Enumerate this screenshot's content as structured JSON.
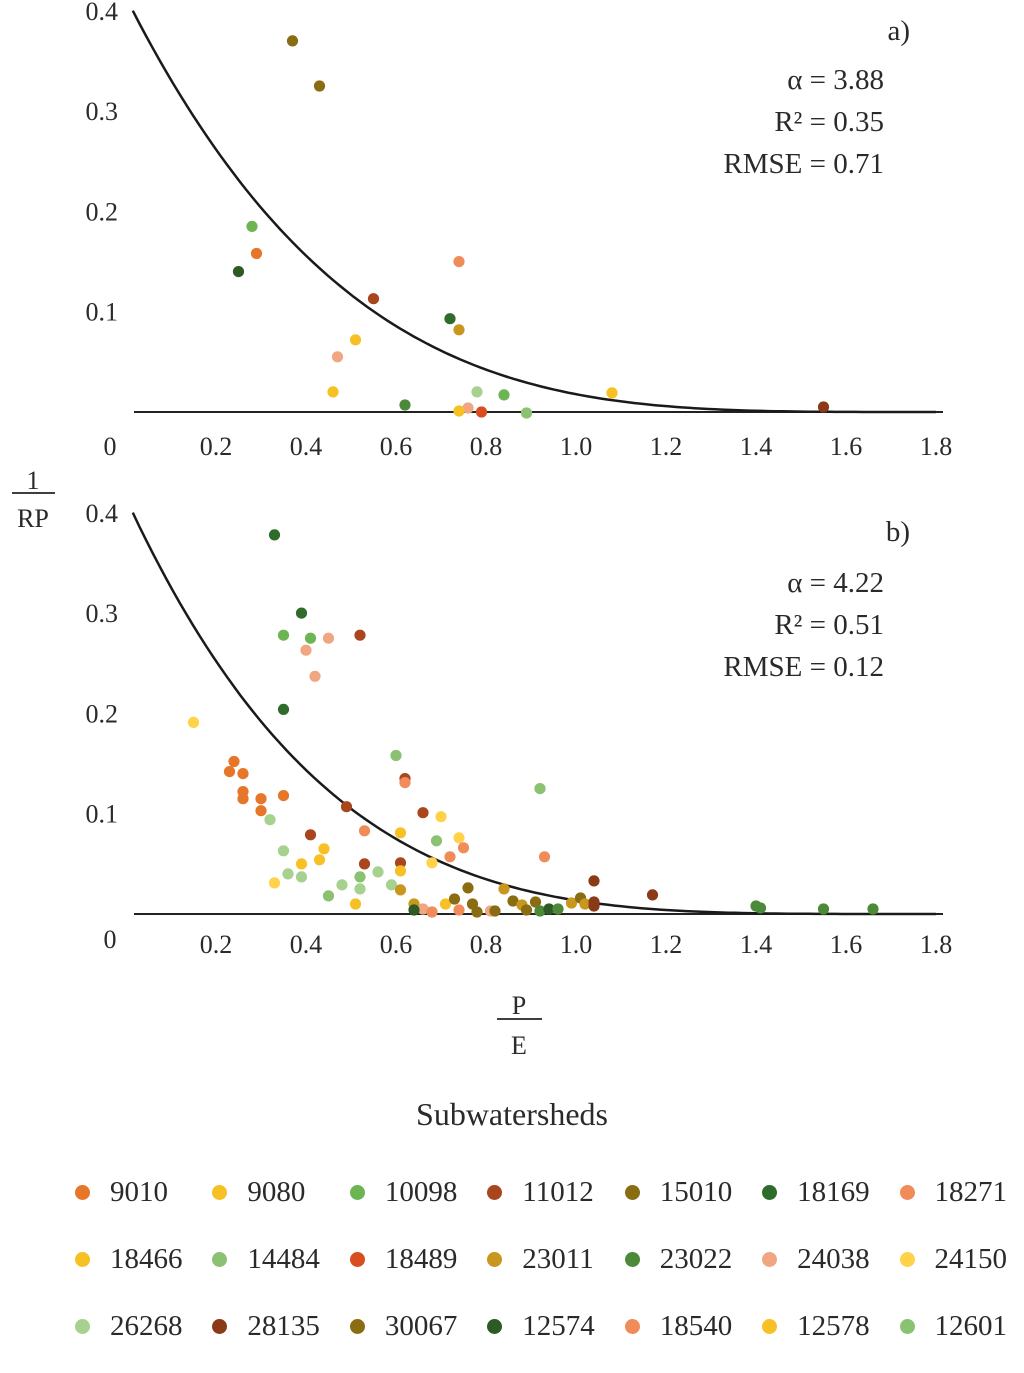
{
  "chart_data": [
    {
      "type": "scatter",
      "panel_label": "a)",
      "stats": {
        "alpha": "α = 3.88",
        "r2": "R² = 0.35",
        "rmse": "RMSE = 0.71"
      },
      "alpha": 3.88,
      "xlim": [
        0,
        1.8
      ],
      "ylim": [
        0,
        0.4
      ],
      "x_ticks": [
        "0.2",
        "0.4",
        "0.6",
        "0.8",
        "1.0",
        "1.2",
        "1.4",
        "1.6",
        "1.8"
      ],
      "x_origin": "0",
      "y_ticks": [
        "0.1",
        "0.2",
        "0.3",
        "0.4"
      ],
      "points": [
        {
          "x": 0.37,
          "y": 0.37,
          "color": "#8a6d12"
        },
        {
          "x": 0.43,
          "y": 0.325,
          "color": "#8a6d12"
        },
        {
          "x": 0.28,
          "y": 0.185,
          "color": "#6db553"
        },
        {
          "x": 0.29,
          "y": 0.158,
          "color": "#e5762a"
        },
        {
          "x": 0.25,
          "y": 0.14,
          "color": "#2e5a26"
        },
        {
          "x": 0.74,
          "y": 0.15,
          "color": "#ef8c5a"
        },
        {
          "x": 0.55,
          "y": 0.113,
          "color": "#a9461d"
        },
        {
          "x": 0.72,
          "y": 0.093,
          "color": "#2f6b2a"
        },
        {
          "x": 0.74,
          "y": 0.082,
          "color": "#c9961e"
        },
        {
          "x": 0.51,
          "y": 0.072,
          "color": "#f7c126"
        },
        {
          "x": 0.47,
          "y": 0.055,
          "color": "#f0a681"
        },
        {
          "x": 0.46,
          "y": 0.02,
          "color": "#f7c126"
        },
        {
          "x": 0.62,
          "y": 0.007,
          "color": "#4c8a3a"
        },
        {
          "x": 0.78,
          "y": 0.02,
          "color": "#a6d18f"
        },
        {
          "x": 0.84,
          "y": 0.017,
          "color": "#6db553"
        },
        {
          "x": 0.76,
          "y": 0.004,
          "color": "#f0a681"
        },
        {
          "x": 0.74,
          "y": 0.001,
          "color": "#f7c126"
        },
        {
          "x": 0.79,
          "y": 0.0,
          "color": "#d84e1f"
        },
        {
          "x": 0.89,
          "y": -0.001,
          "color": "#8ac271"
        },
        {
          "x": 1.08,
          "y": 0.019,
          "color": "#f7c126"
        },
        {
          "x": 1.55,
          "y": 0.005,
          "color": "#8a3a16"
        }
      ]
    },
    {
      "type": "scatter",
      "panel_label": "b)",
      "stats": {
        "alpha": "α = 4.22",
        "r2": "R² = 0.51",
        "rmse": "RMSE = 0.12"
      },
      "alpha": 4.22,
      "xlim": [
        0,
        1.8
      ],
      "ylim": [
        0,
        0.4
      ],
      "x_ticks": [
        "0.2",
        "0.4",
        "0.6",
        "0.8",
        "1.0",
        "1.2",
        "1.4",
        "1.6",
        "1.8"
      ],
      "x_origin": "0",
      "y_ticks": [
        "0.1",
        "0.2",
        "0.3",
        "0.4"
      ],
      "points": [
        {
          "x": 0.33,
          "y": 0.378,
          "color": "#2f6b2a"
        },
        {
          "x": 0.39,
          "y": 0.3,
          "color": "#2f6b2a"
        },
        {
          "x": 0.35,
          "y": 0.278,
          "color": "#6db553"
        },
        {
          "x": 0.41,
          "y": 0.275,
          "color": "#6db553"
        },
        {
          "x": 0.45,
          "y": 0.275,
          "color": "#f0a681"
        },
        {
          "x": 0.52,
          "y": 0.278,
          "color": "#a9461d"
        },
        {
          "x": 0.4,
          "y": 0.263,
          "color": "#f0a681"
        },
        {
          "x": 0.42,
          "y": 0.237,
          "color": "#f0a681"
        },
        {
          "x": 0.35,
          "y": 0.204,
          "color": "#2f6b2a"
        },
        {
          "x": 0.15,
          "y": 0.191,
          "color": "#ffd24a"
        },
        {
          "x": 0.24,
          "y": 0.152,
          "color": "#e5762a"
        },
        {
          "x": 0.23,
          "y": 0.142,
          "color": "#e5762a"
        },
        {
          "x": 0.26,
          "y": 0.14,
          "color": "#e5762a"
        },
        {
          "x": 0.26,
          "y": 0.122,
          "color": "#e5762a"
        },
        {
          "x": 0.26,
          "y": 0.115,
          "color": "#e5762a"
        },
        {
          "x": 0.3,
          "y": 0.115,
          "color": "#e5762a"
        },
        {
          "x": 0.3,
          "y": 0.103,
          "color": "#e5762a"
        },
        {
          "x": 0.35,
          "y": 0.118,
          "color": "#e5762a"
        },
        {
          "x": 0.6,
          "y": 0.158,
          "color": "#8ac271"
        },
        {
          "x": 0.62,
          "y": 0.135,
          "color": "#a9461d"
        },
        {
          "x": 0.62,
          "y": 0.131,
          "color": "#ef8c5a"
        },
        {
          "x": 0.92,
          "y": 0.125,
          "color": "#8ac271"
        },
        {
          "x": 0.49,
          "y": 0.107,
          "color": "#a9461d"
        },
        {
          "x": 0.66,
          "y": 0.101,
          "color": "#a9461d"
        },
        {
          "x": 0.7,
          "y": 0.097,
          "color": "#ffd24a"
        },
        {
          "x": 0.32,
          "y": 0.094,
          "color": "#a6d18f"
        },
        {
          "x": 0.53,
          "y": 0.083,
          "color": "#ef8c5a"
        },
        {
          "x": 0.61,
          "y": 0.081,
          "color": "#f7c126"
        },
        {
          "x": 0.41,
          "y": 0.079,
          "color": "#a9461d"
        },
        {
          "x": 0.69,
          "y": 0.073,
          "color": "#8ac271"
        },
        {
          "x": 0.74,
          "y": 0.076,
          "color": "#ffd24a"
        },
        {
          "x": 0.75,
          "y": 0.066,
          "color": "#ef8c5a"
        },
        {
          "x": 0.35,
          "y": 0.063,
          "color": "#a6d18f"
        },
        {
          "x": 0.44,
          "y": 0.065,
          "color": "#f7c126"
        },
        {
          "x": 0.72,
          "y": 0.057,
          "color": "#ef8c5a"
        },
        {
          "x": 0.93,
          "y": 0.057,
          "color": "#ef8c5a"
        },
        {
          "x": 0.43,
          "y": 0.054,
          "color": "#f7c126"
        },
        {
          "x": 0.39,
          "y": 0.05,
          "color": "#f7c126"
        },
        {
          "x": 0.53,
          "y": 0.05,
          "color": "#a9461d"
        },
        {
          "x": 0.61,
          "y": 0.051,
          "color": "#a9461d"
        },
        {
          "x": 0.68,
          "y": 0.051,
          "color": "#ffd24a"
        },
        {
          "x": 0.61,
          "y": 0.043,
          "color": "#f7c126"
        },
        {
          "x": 0.36,
          "y": 0.04,
          "color": "#a6d18f"
        },
        {
          "x": 0.39,
          "y": 0.037,
          "color": "#a6d18f"
        },
        {
          "x": 0.56,
          "y": 0.042,
          "color": "#a6d18f"
        },
        {
          "x": 0.52,
          "y": 0.037,
          "color": "#8ac271"
        },
        {
          "x": 0.33,
          "y": 0.031,
          "color": "#ffd24a"
        },
        {
          "x": 0.48,
          "y": 0.029,
          "color": "#a6d18f"
        },
        {
          "x": 0.59,
          "y": 0.029,
          "color": "#a6d18f"
        },
        {
          "x": 0.52,
          "y": 0.025,
          "color": "#a6d18f"
        },
        {
          "x": 0.61,
          "y": 0.024,
          "color": "#c9961e"
        },
        {
          "x": 1.04,
          "y": 0.033,
          "color": "#8a3a16"
        },
        {
          "x": 0.45,
          "y": 0.018,
          "color": "#8ac271"
        },
        {
          "x": 0.51,
          "y": 0.01,
          "color": "#f7c126"
        },
        {
          "x": 0.64,
          "y": 0.01,
          "color": "#c9961e"
        },
        {
          "x": 0.66,
          "y": 0.005,
          "color": "#f0a681"
        },
        {
          "x": 0.71,
          "y": 0.01,
          "color": "#f7c126"
        },
        {
          "x": 0.73,
          "y": 0.015,
          "color": "#8a6d12"
        },
        {
          "x": 0.76,
          "y": 0.026,
          "color": "#8a6d12"
        },
        {
          "x": 0.77,
          "y": 0.01,
          "color": "#8a6d12"
        },
        {
          "x": 0.78,
          "y": 0.002,
          "color": "#8a6d12"
        },
        {
          "x": 0.81,
          "y": 0.003,
          "color": "#f0a681"
        },
        {
          "x": 0.64,
          "y": 0.004,
          "color": "#2e5a26"
        },
        {
          "x": 0.68,
          "y": 0.002,
          "color": "#ef8c5a"
        },
        {
          "x": 0.74,
          "y": 0.004,
          "color": "#ef8c5a"
        },
        {
          "x": 0.82,
          "y": 0.003,
          "color": "#8a6d12"
        },
        {
          "x": 0.84,
          "y": 0.025,
          "color": "#c9961e"
        },
        {
          "x": 0.86,
          "y": 0.013,
          "color": "#8a6d12"
        },
        {
          "x": 0.88,
          "y": 0.009,
          "color": "#c9961e"
        },
        {
          "x": 0.89,
          "y": 0.004,
          "color": "#8a6d12"
        },
        {
          "x": 0.91,
          "y": 0.012,
          "color": "#8a6d12"
        },
        {
          "x": 0.92,
          "y": 0.003,
          "color": "#4c8a3a"
        },
        {
          "x": 0.94,
          "y": 0.005,
          "color": "#2e5a26"
        },
        {
          "x": 0.96,
          "y": 0.005,
          "color": "#4c8a3a"
        },
        {
          "x": 0.99,
          "y": 0.011,
          "color": "#c9961e"
        },
        {
          "x": 1.01,
          "y": 0.016,
          "color": "#8a6d12"
        },
        {
          "x": 1.02,
          "y": 0.01,
          "color": "#c9961e"
        },
        {
          "x": 1.04,
          "y": 0.008,
          "color": "#8a3a16"
        },
        {
          "x": 1.04,
          "y": 0.012,
          "color": "#8a3a16"
        },
        {
          "x": 1.17,
          "y": 0.019,
          "color": "#8a3a16"
        },
        {
          "x": 1.4,
          "y": 0.008,
          "color": "#4c8a3a"
        },
        {
          "x": 1.41,
          "y": 0.006,
          "color": "#4c8a3a"
        },
        {
          "x": 1.55,
          "y": 0.005,
          "color": "#4c8a3a"
        },
        {
          "x": 1.66,
          "y": 0.005,
          "color": "#4c8a3a"
        }
      ]
    }
  ],
  "y_axis_label": {
    "numerator": "1",
    "denominator": "RP"
  },
  "x_axis_label": {
    "numerator": "P",
    "denominator": "E"
  },
  "legend": {
    "title": "Subwatersheds",
    "items": [
      {
        "label": "9010",
        "color": "#e5762a"
      },
      {
        "label": "9080",
        "color": "#f7c126"
      },
      {
        "label": "10098",
        "color": "#6db553"
      },
      {
        "label": "11012",
        "color": "#a9461d"
      },
      {
        "label": "15010",
        "color": "#8a6d12"
      },
      {
        "label": "18169",
        "color": "#2f6b2a"
      },
      {
        "label": "18271",
        "color": "#ef8c5a"
      },
      {
        "label": "18466",
        "color": "#f7c126"
      },
      {
        "label": "14484",
        "color": "#8ac271"
      },
      {
        "label": "18489",
        "color": "#d84e1f"
      },
      {
        "label": "23011",
        "color": "#c9961e"
      },
      {
        "label": "23022",
        "color": "#4c8a3a"
      },
      {
        "label": "24038",
        "color": "#f0a681"
      },
      {
        "label": "24150",
        "color": "#ffd24a"
      },
      {
        "label": "26268",
        "color": "#a6d18f"
      },
      {
        "label": "28135",
        "color": "#8a3a16"
      },
      {
        "label": "30067",
        "color": "#8a6d12"
      },
      {
        "label": "12574",
        "color": "#2e5a26"
      },
      {
        "label": "18540",
        "color": "#ef8c5a"
      },
      {
        "label": "12578",
        "color": "#f7c126"
      },
      {
        "label": "12601",
        "color": "#8ac271"
      }
    ]
  }
}
